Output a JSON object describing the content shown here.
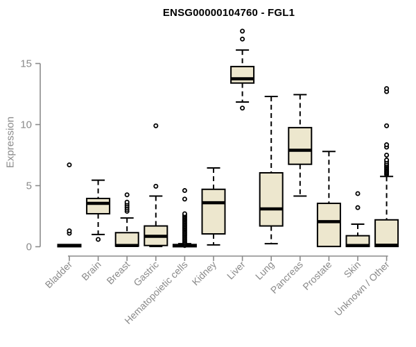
{
  "header": {
    "title": "ENSG00000104760 - FGL1"
  },
  "chart_data": {
    "type": "boxplot",
    "title": "ENSG00000104760 - FGL1",
    "xlabel": "",
    "ylabel": "Expression",
    "ylim": [
      0,
      15
    ],
    "yticks": [
      0,
      5,
      10,
      15
    ],
    "grid": false,
    "legend": false,
    "categories": [
      "Bladder",
      "Brain",
      "Breast",
      "Gastric",
      "Hematopoietic cells",
      "Kidney",
      "Liver",
      "Lung",
      "Pancreas",
      "Prostate",
      "Skin",
      "Unknown / Other"
    ],
    "series": [
      {
        "name": "Bladder",
        "low": 0,
        "q1": 0,
        "median": 0.08,
        "q3": 0.18,
        "high": 0.18,
        "outliers": [
          1.1,
          1.3,
          6.7
        ]
      },
      {
        "name": "Brain",
        "low": 1.0,
        "q1": 2.7,
        "median": 3.55,
        "q3": 3.95,
        "high": 5.45,
        "outliers": [
          0.6
        ]
      },
      {
        "name": "Breast",
        "low": 0,
        "q1": 0.05,
        "median": 0.1,
        "q3": 1.15,
        "high": 2.35,
        "outliers": [
          2.9,
          3.05,
          3.2,
          3.35,
          3.5,
          3.65,
          4.25
        ]
      },
      {
        "name": "Gastric",
        "low": 0.02,
        "q1": 0.1,
        "median": 0.85,
        "q3": 1.7,
        "high": 4.15,
        "outliers": [
          4.95,
          9.9
        ]
      },
      {
        "name": "Hematopoietic cells",
        "low": 0,
        "q1": 0,
        "median": 0.08,
        "q3": 0.18,
        "high": 0.25,
        "outliers": [
          0.1,
          0.2,
          0.3,
          0.4,
          0.5,
          0.6,
          0.7,
          0.8,
          0.9,
          1.0,
          1.1,
          1.2,
          1.3,
          1.4,
          1.5,
          1.6,
          1.7,
          1.8,
          1.9,
          2.0,
          2.1,
          2.2,
          2.3,
          2.4,
          2.5,
          2.6,
          2.7,
          3.9,
          4.6
        ]
      },
      {
        "name": "Kidney",
        "low": 0.15,
        "q1": 1.05,
        "median": 3.6,
        "q3": 4.7,
        "high": 6.45,
        "outliers": []
      },
      {
        "name": "Liver",
        "low": 11.85,
        "q1": 13.4,
        "median": 13.75,
        "q3": 14.75,
        "high": 16.1,
        "outliers": [
          11.35,
          17.0,
          17.65
        ]
      },
      {
        "name": "Lung",
        "low": 0.25,
        "q1": 1.7,
        "median": 3.1,
        "q3": 6.05,
        "high": 12.3,
        "outliers": []
      },
      {
        "name": "Pancreas",
        "low": 4.15,
        "q1": 6.75,
        "median": 7.9,
        "q3": 9.75,
        "high": 12.45,
        "outliers": []
      },
      {
        "name": "Prostate",
        "low": 0,
        "q1": 0.02,
        "median": 2.05,
        "q3": 3.55,
        "high": 7.8,
        "outliers": []
      },
      {
        "name": "Skin",
        "low": 0,
        "q1": 0.02,
        "median": 0.1,
        "q3": 0.9,
        "high": 1.85,
        "outliers": [
          3.2,
          4.35
        ]
      },
      {
        "name": "Unknown / Other",
        "low": 0,
        "q1": 0.02,
        "median": 0.12,
        "q3": 2.2,
        "high": 5.75,
        "outliers": [
          5.9,
          6.0,
          6.1,
          6.2,
          6.3,
          6.4,
          6.5,
          6.6,
          6.7,
          6.8,
          6.95,
          7.1,
          7.5,
          8.15,
          8.35,
          9.9,
          12.7,
          12.95
        ]
      }
    ],
    "colors": {
      "box_fill": "#EDE7CE",
      "box_stroke": "#000000",
      "median": "#000000",
      "whisker": "#000000",
      "outlier_stroke": "#000000",
      "axis": "#8a8a8a",
      "tick_label": "#8a8a8a",
      "title": "#000000"
    }
  }
}
